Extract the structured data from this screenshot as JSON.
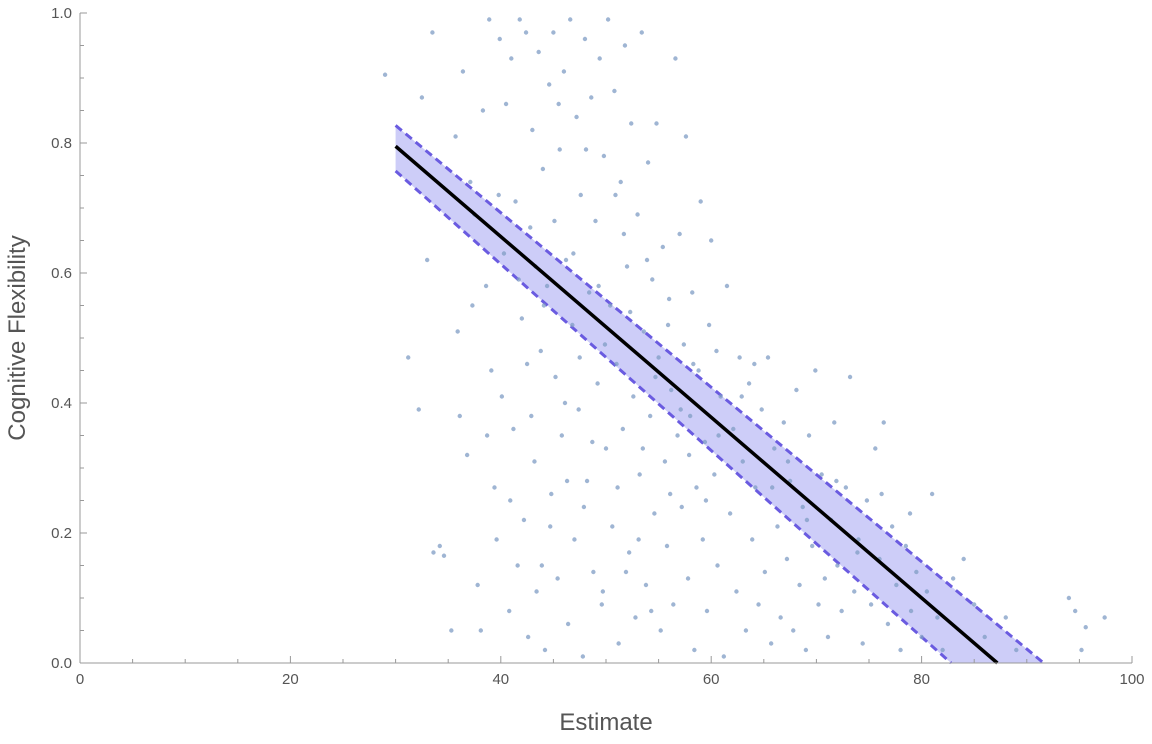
{
  "chart_data": {
    "type": "scatter",
    "xlabel": "Estimate",
    "ylabel": "Cognitive Flexibility",
    "xlim": [
      0,
      100
    ],
    "ylim": [
      0,
      1
    ],
    "x_ticks": [
      0,
      20,
      40,
      60,
      80,
      100
    ],
    "x_tick_labels": [
      "0",
      "20",
      "40",
      "60",
      "80",
      "100"
    ],
    "y_ticks": [
      0,
      0.2,
      0.4,
      0.6,
      0.8,
      1.0
    ],
    "y_tick_labels": [
      "0.0",
      "0.2",
      "0.4",
      "0.6",
      "0.8",
      "1.0"
    ],
    "grid": false,
    "colors": {
      "points": "#7f9cc4",
      "fit_line": "#000000",
      "band_fill": "#c4c4f7",
      "band_edge": "#6a5be0",
      "axis": "#999999",
      "text": "#555555"
    },
    "points": [
      [
        29,
        0.905
      ],
      [
        32.5,
        0.87
      ],
      [
        33.5,
        0.97
      ],
      [
        31.2,
        0.47
      ],
      [
        32.2,
        0.39
      ],
      [
        33,
        0.62
      ],
      [
        33.6,
        0.17
      ],
      [
        34.2,
        0.18
      ],
      [
        34.6,
        0.165
      ],
      [
        35.3,
        0.05
      ],
      [
        35.7,
        0.81
      ],
      [
        35.9,
        0.51
      ],
      [
        36.1,
        0.38
      ],
      [
        36.4,
        0.91
      ],
      [
        36.8,
        0.32
      ],
      [
        37.1,
        0.74
      ],
      [
        37.5,
        0.69
      ],
      [
        37.8,
        0.12
      ],
      [
        38.1,
        0.05
      ],
      [
        38.3,
        0.85
      ],
      [
        38.6,
        0.58
      ],
      [
        38.9,
        0.99
      ],
      [
        39.1,
        0.45
      ],
      [
        39.4,
        0.27
      ],
      [
        39.6,
        0.19
      ],
      [
        39.9,
        0.96
      ],
      [
        40.1,
        0.41
      ],
      [
        40.3,
        0.63
      ],
      [
        40.5,
        0.86
      ],
      [
        40.8,
        0.08
      ],
      [
        41,
        0.93
      ],
      [
        41.2,
        0.36
      ],
      [
        41.4,
        0.71
      ],
      [
        41.6,
        0.15
      ],
      [
        41.8,
        0.99
      ],
      [
        42,
        0.53
      ],
      [
        42.2,
        0.22
      ],
      [
        42.4,
        0.97
      ],
      [
        42.6,
        0.04
      ],
      [
        42.8,
        0.67
      ],
      [
        43,
        0.82
      ],
      [
        43.2,
        0.31
      ],
      [
        43.4,
        0.11
      ],
      [
        43.6,
        0.94
      ],
      [
        43.8,
        0.48
      ],
      [
        44,
        0.76
      ],
      [
        44.2,
        0.02
      ],
      [
        44.4,
        0.58
      ],
      [
        44.6,
        0.89
      ],
      [
        44.8,
        0.26
      ],
      [
        45,
        0.97
      ],
      [
        45.2,
        0.44
      ],
      [
        45.4,
        0.13
      ],
      [
        45.6,
        0.79
      ],
      [
        45.8,
        0.35
      ],
      [
        46,
        0.91
      ],
      [
        46.2,
        0.62
      ],
      [
        46.4,
        0.06
      ],
      [
        46.6,
        0.99
      ],
      [
        46.8,
        0.52
      ],
      [
        47,
        0.19
      ],
      [
        47.2,
        0.84
      ],
      [
        47.4,
        0.39
      ],
      [
        47.6,
        0.72
      ],
      [
        47.8,
        0.01
      ],
      [
        48,
        0.96
      ],
      [
        48.2,
        0.28
      ],
      [
        48.4,
        0.57
      ],
      [
        48.6,
        0.87
      ],
      [
        48.8,
        0.14
      ],
      [
        49,
        0.68
      ],
      [
        49.2,
        0.43
      ],
      [
        49.4,
        0.93
      ],
      [
        49.6,
        0.09
      ],
      [
        49.8,
        0.78
      ],
      [
        50,
        0.33
      ],
      [
        50.2,
        0.99
      ],
      [
        50.4,
        0.55
      ],
      [
        50.6,
        0.21
      ],
      [
        50.8,
        0.88
      ],
      [
        51,
        0.46
      ],
      [
        51.2,
        0.03
      ],
      [
        51.4,
        0.74
      ],
      [
        51.6,
        0.36
      ],
      [
        51.8,
        0.95
      ],
      [
        52,
        0.61
      ],
      [
        52.2,
        0.17
      ],
      [
        52.4,
        0.83
      ],
      [
        52.6,
        0.41
      ],
      [
        52.8,
        0.07
      ],
      [
        53,
        0.69
      ],
      [
        53.2,
        0.29
      ],
      [
        53.4,
        0.97
      ],
      [
        53.6,
        0.51
      ],
      [
        53.8,
        0.12
      ],
      [
        54,
        0.77
      ],
      [
        54.2,
        0.38
      ],
      [
        54.4,
        0.59
      ],
      [
        54.6,
        0.23
      ],
      [
        54.8,
        0.83
      ],
      [
        55,
        0.47
      ],
      [
        55.2,
        0.05
      ],
      [
        55.4,
        0.64
      ],
      [
        55.6,
        0.31
      ],
      [
        55.8,
        0.18
      ],
      [
        56,
        0.56
      ],
      [
        56.2,
        0.42
      ],
      [
        56.4,
        0.09
      ],
      [
        56.6,
        0.93
      ],
      [
        56.8,
        0.35
      ],
      [
        57,
        0.66
      ],
      [
        57.2,
        0.24
      ],
      [
        57.4,
        0.49
      ],
      [
        57.6,
        0.81
      ],
      [
        57.8,
        0.13
      ],
      [
        58,
        0.38
      ],
      [
        58.2,
        0.57
      ],
      [
        58.4,
        0.02
      ],
      [
        58.6,
        0.27
      ],
      [
        58.8,
        0.45
      ],
      [
        59,
        0.71
      ],
      [
        59.2,
        0.19
      ],
      [
        59.4,
        0.34
      ],
      [
        59.6,
        0.08
      ],
      [
        59.8,
        0.52
      ],
      [
        60,
        0.65
      ],
      [
        60.3,
        0.29
      ],
      [
        60.6,
        0.15
      ],
      [
        60.9,
        0.41
      ],
      [
        61.2,
        0.01
      ],
      [
        61.5,
        0.58
      ],
      [
        61.8,
        0.23
      ],
      [
        62.1,
        0.36
      ],
      [
        62.4,
        0.11
      ],
      [
        62.7,
        0.47
      ],
      [
        63,
        0.31
      ],
      [
        63.3,
        0.05
      ],
      [
        63.6,
        0.43
      ],
      [
        63.9,
        0.19
      ],
      [
        64.2,
        0.27
      ],
      [
        64.5,
        0.09
      ],
      [
        64.8,
        0.39
      ],
      [
        65.1,
        0.14
      ],
      [
        65.4,
        0.47
      ],
      [
        65.7,
        0.03
      ],
      [
        66,
        0.33
      ],
      [
        66.3,
        0.21
      ],
      [
        66.6,
        0.07
      ],
      [
        66.9,
        0.37
      ],
      [
        67.2,
        0.16
      ],
      [
        67.5,
        0.28
      ],
      [
        67.8,
        0.05
      ],
      [
        68.1,
        0.42
      ],
      [
        68.4,
        0.12
      ],
      [
        68.7,
        0.24
      ],
      [
        69,
        0.02
      ],
      [
        69.3,
        0.35
      ],
      [
        69.6,
        0.18
      ],
      [
        69.9,
        0.45
      ],
      [
        70.2,
        0.09
      ],
      [
        70.5,
        0.29
      ],
      [
        70.8,
        0.13
      ],
      [
        71.1,
        0.04
      ],
      [
        71.4,
        0.22
      ],
      [
        71.7,
        0.37
      ],
      [
        72,
        0.15
      ],
      [
        72.4,
        0.08
      ],
      [
        72.8,
        0.27
      ],
      [
        73.2,
        0.44
      ],
      [
        73.6,
        0.11
      ],
      [
        74,
        0.19
      ],
      [
        74.4,
        0.03
      ],
      [
        74.8,
        0.25
      ],
      [
        75.2,
        0.09
      ],
      [
        75.6,
        0.33
      ],
      [
        76,
        0.16
      ],
      [
        76.4,
        0.37
      ],
      [
        76.8,
        0.06
      ],
      [
        77.2,
        0.21
      ],
      [
        77.6,
        0.12
      ],
      [
        78,
        0.02
      ],
      [
        78.5,
        0.18
      ],
      [
        79,
        0.08
      ],
      [
        79.5,
        0.14
      ],
      [
        80,
        0.04
      ],
      [
        80.5,
        0.11
      ],
      [
        81,
        0.26
      ],
      [
        81.5,
        0.07
      ],
      [
        82,
        0.02
      ],
      [
        83,
        0.13
      ],
      [
        84,
        0.16
      ],
      [
        85,
        0.09
      ],
      [
        86,
        0.04
      ],
      [
        88,
        0.07
      ],
      [
        89,
        0.02
      ],
      [
        94,
        0.1
      ],
      [
        94.6,
        0.08
      ],
      [
        95.2,
        0.02
      ],
      [
        95.6,
        0.055
      ],
      [
        97.4,
        0.07
      ],
      [
        37.3,
        0.55
      ],
      [
        38.7,
        0.35
      ],
      [
        39.8,
        0.72
      ],
      [
        40.9,
        0.25
      ],
      [
        42.5,
        0.46
      ],
      [
        43.9,
        0.15
      ],
      [
        45.1,
        0.68
      ],
      [
        46.3,
        0.28
      ],
      [
        47.5,
        0.47
      ],
      [
        48.7,
        0.34
      ],
      [
        49.9,
        0.49
      ],
      [
        51.1,
        0.27
      ],
      [
        52.3,
        0.54
      ],
      [
        53.5,
        0.33
      ],
      [
        54.7,
        0.44
      ],
      [
        55.9,
        0.52
      ],
      [
        57.1,
        0.39
      ],
      [
        58.3,
        0.46
      ],
      [
        59.5,
        0.25
      ],
      [
        60.7,
        0.35
      ],
      [
        44.1,
        0.55
      ],
      [
        46.9,
        0.63
      ],
      [
        49.3,
        0.58
      ],
      [
        51.7,
        0.66
      ],
      [
        53.9,
        0.62
      ],
      [
        50.9,
        0.72
      ],
      [
        48.1,
        0.79
      ],
      [
        45.5,
        0.86
      ],
      [
        43.3,
        0.61
      ],
      [
        41.7,
        0.59
      ],
      [
        42.9,
        0.38
      ],
      [
        44.7,
        0.21
      ],
      [
        46.1,
        0.4
      ],
      [
        47.9,
        0.24
      ],
      [
        49.7,
        0.11
      ],
      [
        51.9,
        0.14
      ],
      [
        53.1,
        0.19
      ],
      [
        54.3,
        0.08
      ],
      [
        56.1,
        0.26
      ],
      [
        57.9,
        0.32
      ],
      [
        65.8,
        0.27
      ],
      [
        67.3,
        0.31
      ],
      [
        69.1,
        0.22
      ],
      [
        71.9,
        0.28
      ],
      [
        73.9,
        0.17
      ],
      [
        76.2,
        0.26
      ],
      [
        78.9,
        0.23
      ],
      [
        60.5,
        0.48
      ],
      [
        62.9,
        0.41
      ],
      [
        64.1,
        0.46
      ]
    ],
    "fit_line": {
      "x": [
        30,
        87.2
      ],
      "y": [
        0.795,
        0.0
      ]
    },
    "band_upper": {
      "x": [
        30,
        91.6
      ],
      "y": [
        0.827,
        0.0
      ]
    },
    "band_lower": {
      "x": [
        30,
        82.8
      ],
      "y": [
        0.757,
        0.0
      ]
    }
  }
}
